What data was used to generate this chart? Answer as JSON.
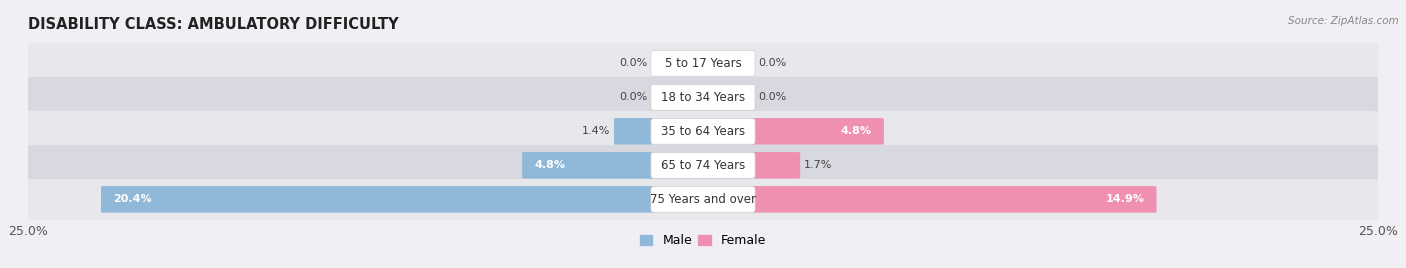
{
  "title": "DISABILITY CLASS: AMBULATORY DIFFICULTY",
  "source": "Source: ZipAtlas.com",
  "categories": [
    "5 to 17 Years",
    "18 to 34 Years",
    "35 to 64 Years",
    "65 to 74 Years",
    "75 Years and over"
  ],
  "male_values": [
    0.0,
    0.0,
    1.4,
    4.8,
    20.4
  ],
  "female_values": [
    0.0,
    0.0,
    4.8,
    1.7,
    14.9
  ],
  "max_val": 25.0,
  "male_color": "#90b8d8",
  "female_color": "#f090b0",
  "male_color_dark": "#6090c0",
  "female_color_dark": "#e06090",
  "row_color_odd": "#e8e8ec",
  "row_color_even": "#d8d8e0",
  "title_fontsize": 10.5,
  "label_fontsize": 8.5,
  "tick_fontsize": 9,
  "legend_fontsize": 9,
  "value_fontsize": 8.0
}
